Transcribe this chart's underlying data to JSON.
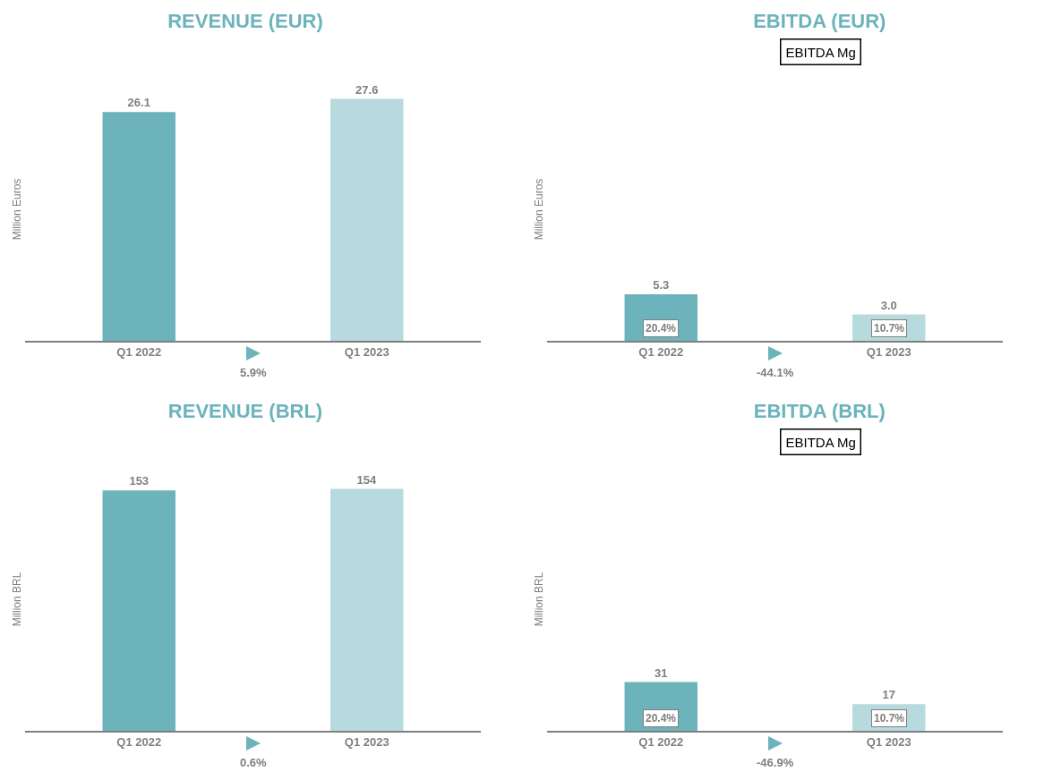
{
  "chart_data": [
    {
      "type": "bar",
      "title": "REVENUE (EUR)",
      "ylabel": "Million Euros",
      "categories": [
        "Q1 2022",
        "Q1 2023"
      ],
      "values": [
        26.1,
        27.6
      ],
      "colors": [
        "#6db3bb",
        "#b7dadf"
      ],
      "value_labels": [
        "26.1",
        "27.6"
      ],
      "tick_labels": "x",
      "grid": false,
      "annotations": [
        "5.9%"
      ]
    },
    {
      "type": "bar",
      "title": "EBITDA (EUR)",
      "ylabel": "Million Euros",
      "categories": [
        "Q1 2022",
        "Q1 2023"
      ],
      "values": [
        5.3,
        3.0
      ],
      "colors": [
        "#6db3bb",
        "#b7dadf"
      ],
      "value_labels": [
        "5.3",
        "3.0"
      ],
      "tick_labels": "x",
      "grid": false,
      "annotations": [
        "EBITDA Mg",
        "20.4%",
        "10.7%",
        "-44.1%"
      ]
    },
    {
      "type": "bar",
      "title": "REVENUE (BRL)",
      "ylabel": "Million BRL",
      "categories": [
        "Q1 2022",
        "Q1 2023"
      ],
      "values": [
        153,
        154
      ],
      "colors": [
        "#6db3bb",
        "#b7dadf"
      ],
      "value_labels": [
        "153",
        "154"
      ],
      "tick_labels": "x",
      "grid": false,
      "annotations": [
        "0.6%"
      ]
    },
    {
      "type": "bar",
      "title": "EBITDA (BRL)",
      "ylabel": "Million BRL",
      "categories": [
        "Q1 2022",
        "Q1 2023"
      ],
      "values": [
        31,
        17
      ],
      "colors": [
        "#6db3bb",
        "#b7dadf"
      ],
      "value_labels": [
        "31",
        "17"
      ],
      "tick_labels": "x",
      "grid": false,
      "annotations": [
        "EBITDA Mg",
        "20.4%",
        "10.7%",
        "-46.9%"
      ]
    }
  ]
}
